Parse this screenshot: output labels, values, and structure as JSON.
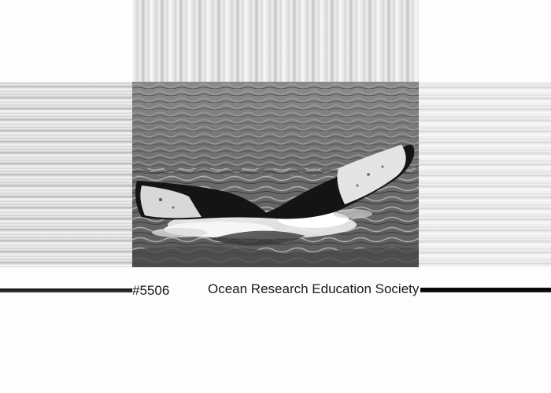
{
  "photo": {
    "subject_icon": "whale-tail-icon"
  },
  "caption": {
    "id_number": "#5506",
    "organization": "Ocean Research Education Society"
  }
}
